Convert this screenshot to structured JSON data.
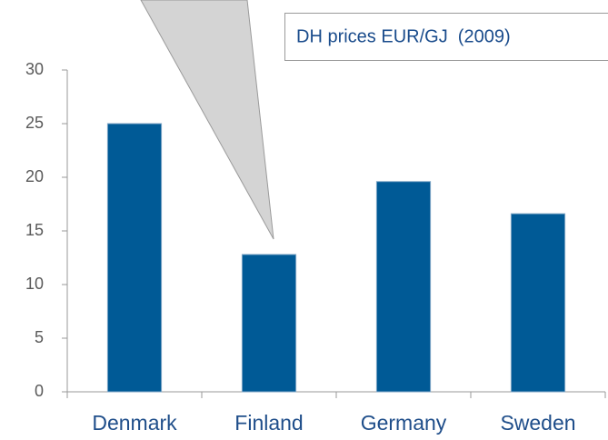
{
  "chart_data": {
    "type": "bar",
    "title": "DH prices EUR/GJ  (2009)",
    "categories": [
      "Denmark",
      "Finland",
      "Germany",
      "Sweden"
    ],
    "values": [
      25,
      12.8,
      19.6,
      16.6
    ],
    "color": "#005a96",
    "ylim": [
      0,
      30
    ],
    "yticks": [
      0,
      5,
      10,
      15,
      20,
      25,
      30
    ],
    "grid": false
  }
}
